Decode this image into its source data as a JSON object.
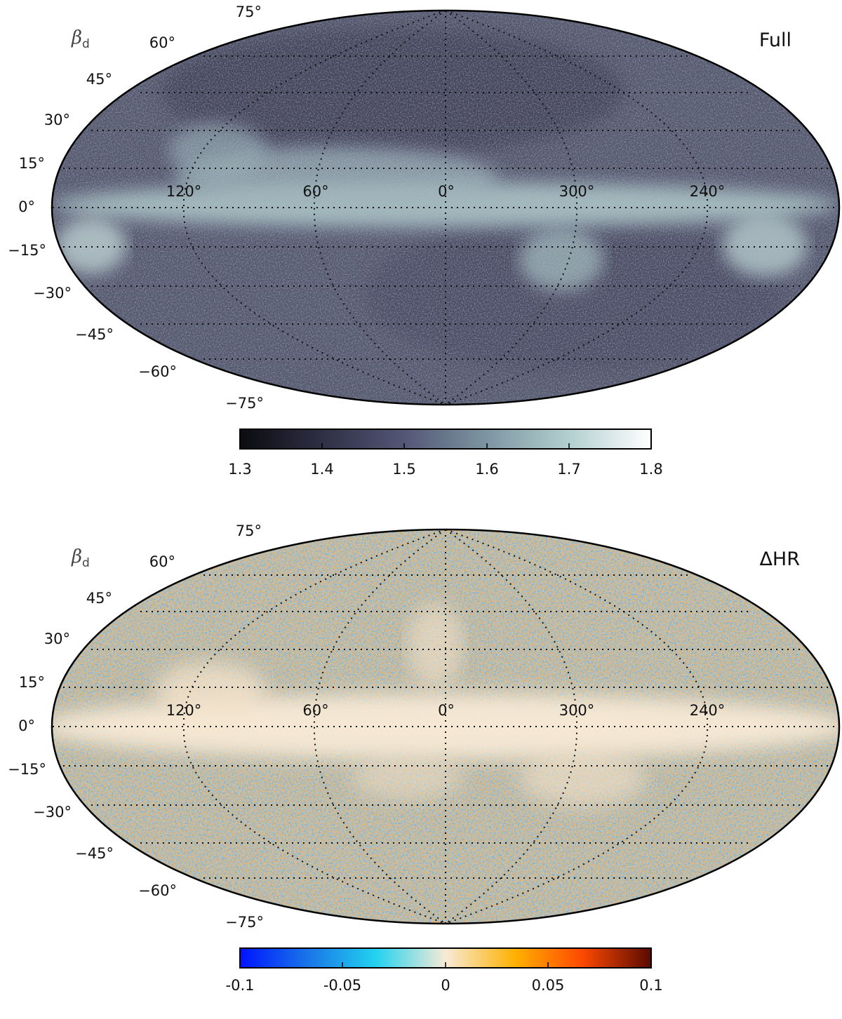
{
  "panels": [
    {
      "id": "full",
      "quantity_symbol": "β",
      "quantity_subscript": "d",
      "tag": "Full",
      "colormap": "planck_grey",
      "colormap_stops": [
        "#0b0b10",
        "#2f2f45",
        "#535776",
        "#7d95a2",
        "#b3cfcf",
        "#ffffff"
      ],
      "lon_labels": [
        "120°",
        "60°",
        "0°",
        "300°",
        "240°"
      ],
      "lat_labels": [
        "75°",
        "60°",
        "45°",
        "30°",
        "15°",
        "0°",
        "−15°",
        "−30°",
        "−45°",
        "−60°",
        "−75°"
      ],
      "colorbar_ticks": [
        "1.3",
        "1.4",
        "1.5",
        "1.6",
        "1.7",
        "1.8"
      ],
      "colorbar_range": [
        1.3,
        1.8
      ]
    },
    {
      "id": "delta-hr",
      "quantity_symbol": "β",
      "quantity_subscript": "d",
      "tag": "ΔHR",
      "colormap": "planck_diverging",
      "colormap_stops": [
        "#0014ff",
        "#1a78e8",
        "#22d2f0",
        "#f7ebd6",
        "#ffb000",
        "#ff4a00",
        "#5a0a00"
      ],
      "lon_labels": [
        "120°",
        "60°",
        "0°",
        "300°",
        "240°"
      ],
      "lat_labels": [
        "75°",
        "60°",
        "45°",
        "30°",
        "15°",
        "0°",
        "−15°",
        "−30°",
        "−45°",
        "−60°",
        "−75°"
      ],
      "colorbar_ticks": [
        "-0.1",
        "-0.05",
        "0",
        "0.05",
        "0.1"
      ],
      "colorbar_range": [
        -0.1,
        0.1
      ]
    }
  ]
}
